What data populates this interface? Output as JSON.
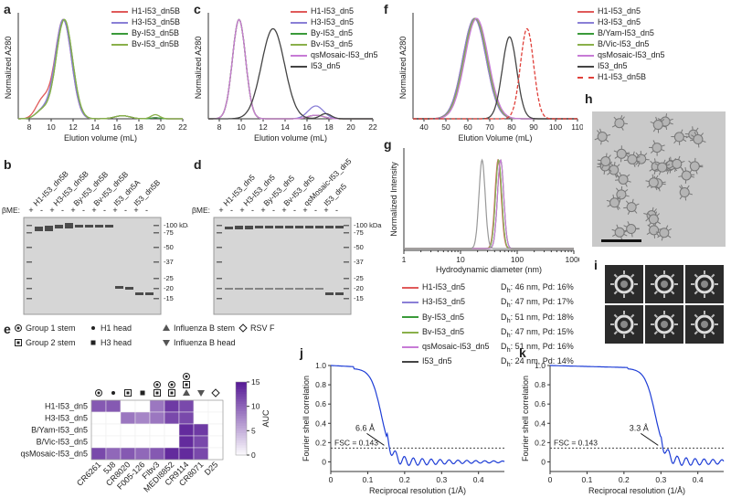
{
  "panels": {
    "a": "a",
    "b": "b",
    "c": "c",
    "d": "d",
    "e": "e",
    "f": "f",
    "g": "g",
    "h": "h",
    "i": "i",
    "j": "j",
    "k": "k"
  },
  "colors": {
    "H1": "#e05a5a",
    "H3": "#8a7fd6",
    "By": "#3a9a3a",
    "Bv": "#8ab04a",
    "qs": "#c77bd6",
    "I53": "#444444",
    "dn5B_dash": "#e0403a",
    "fsc": "#1f3ed6"
  },
  "chart_data": [
    {
      "panel": "a",
      "type": "line",
      "xlabel": "Elution volume (mL)",
      "ylabel": "Normalized A280",
      "xlim": [
        7,
        22
      ],
      "xticks": [
        8,
        10,
        12,
        14,
        16,
        18,
        20,
        22
      ],
      "series": [
        {
          "name": "H1-I53_dn5B",
          "color": "#e05a5a",
          "peak": 11.1
        },
        {
          "name": "H3-I53_dn5B",
          "color": "#8a7fd6",
          "peak": 11.1
        },
        {
          "name": "By-I53_dn5B",
          "color": "#3a9a3a",
          "peak": 11.2
        },
        {
          "name": "Bv-I53_dn5B",
          "color": "#8ab04a",
          "peak": 11.2
        }
      ]
    },
    {
      "panel": "c",
      "type": "line",
      "xlabel": "Elution volume (mL)",
      "ylabel": "Normalized A280",
      "xlim": [
        7,
        22
      ],
      "xticks": [
        8,
        10,
        12,
        14,
        16,
        18,
        20,
        22
      ],
      "series": [
        {
          "name": "H1-I53_dn5",
          "color": "#e05a5a",
          "peak": 9.8
        },
        {
          "name": "H3-I53_dn5",
          "color": "#8a7fd6",
          "peak": 9.8
        },
        {
          "name": "By-I53_dn5",
          "color": "#3a9a3a",
          "peak": 9.8
        },
        {
          "name": "Bv-I53_dn5",
          "color": "#8ab04a",
          "peak": 9.8
        },
        {
          "name": "qsMosaic-I53_dn5",
          "color": "#c77bd6",
          "peak": 9.8
        },
        {
          "name": "I53_dn5",
          "color": "#444444",
          "peak": 12.9
        }
      ]
    },
    {
      "panel": "f",
      "type": "line",
      "xlabel": "Elution Volume (mL)",
      "ylabel": "Normalized A280",
      "xlim": [
        35,
        110
      ],
      "xticks": [
        40,
        50,
        60,
        70,
        80,
        90,
        100,
        110
      ],
      "series": [
        {
          "name": "H1-I53_dn5",
          "color": "#e05a5a",
          "peak": 63
        },
        {
          "name": "H3-I53_dn5",
          "color": "#8a7fd6",
          "peak": 63
        },
        {
          "name": "B/Yam-I53_dn5",
          "color": "#3a9a3a",
          "peak": 63.5
        },
        {
          "name": "B/Vic-I53_dn5",
          "color": "#8ab04a",
          "peak": 63.5
        },
        {
          "name": "qsMosaic-I53_dn5",
          "color": "#c77bd6",
          "peak": 64
        },
        {
          "name": "I53_dn5",
          "color": "#444444",
          "peak": 79
        },
        {
          "name": "H1-I53_dn5B",
          "color": "#e0403a",
          "peak": 87
        }
      ]
    },
    {
      "panel": "g",
      "type": "line",
      "xlabel": "Hydrodynamic diameter (nm)",
      "ylabel": "Normalized Intensity",
      "xscale": "log",
      "xticklabels": [
        "1",
        "10",
        "100",
        "1000"
      ],
      "series": [
        {
          "name": "H1-I53_dn5",
          "color": "#e05a5a",
          "dh": "46 nm",
          "pd": "16%"
        },
        {
          "name": "H3-I53_dn5",
          "color": "#8a7fd6",
          "dh": "47 nm",
          "pd": "17%"
        },
        {
          "name": "By-I53_dn5",
          "color": "#3a9a3a",
          "dh": "51 nm",
          "pd": "18%"
        },
        {
          "name": "Bv-I53_dn5",
          "color": "#8ab04a",
          "dh": "47 nm",
          "pd": "15%"
        },
        {
          "name": "qsMosaic-I53_dn5",
          "color": "#c77bd6",
          "dh": "51 nm",
          "pd": "16%"
        },
        {
          "name": "I53_dn5",
          "color": "#444444",
          "dh": "24 nm",
          "pd": "14%"
        }
      ]
    },
    {
      "panel": "e",
      "type": "heatmap",
      "rows": [
        "H1-I53_dn5",
        "H3-I53_dn5",
        "B/Yam-I53_dn5",
        "B/Vic-I53_dn5",
        "qsMosaic-I53_dn5"
      ],
      "columns": [
        "CR6261",
        "5J8",
        "CR8020",
        "F005-126",
        "FIbv3",
        "MEDI8852",
        "CR9114",
        "CR8071",
        "D25"
      ],
      "values": [
        [
          11,
          11,
          0,
          0,
          9,
          13,
          12,
          0,
          0
        ],
        [
          0,
          0,
          9,
          8,
          9,
          12,
          12,
          0,
          0
        ],
        [
          0,
          0,
          0,
          0,
          0,
          0,
          14,
          13,
          0
        ],
        [
          0,
          0,
          0,
          0,
          0,
          0,
          14,
          12,
          0
        ],
        [
          12,
          10,
          11,
          10,
          11,
          14,
          14,
          12,
          0
        ]
      ],
      "colorbar": {
        "label": "AUC",
        "ticks": [
          "0",
          "5",
          "10",
          "15"
        ],
        "range": [
          0,
          15
        ]
      }
    },
    {
      "panel": "j",
      "type": "line",
      "xlabel": "Reciprocal resolution (1/Å)",
      "ylabel": "Fourier shell correlation",
      "xlim": [
        0,
        0.47
      ],
      "ylim": [
        -0.1,
        1.0
      ],
      "xticklabels": [
        "0",
        "0.1",
        "0.2",
        "0.3",
        "0.4"
      ],
      "yticklabels": [
        "0",
        "0.2",
        "0.4",
        "0.6",
        "0.8",
        "1.0"
      ],
      "threshold": 0.143,
      "resolution_label": "6.6 Å",
      "fsc_label": "FSC = 0.143"
    },
    {
      "panel": "k",
      "type": "line",
      "xlabel": "Reciprocal resolution (1/Å)",
      "ylabel": "Fourier shell correlation",
      "xlim": [
        0,
        0.47
      ],
      "ylim": [
        -0.1,
        1.0
      ],
      "xticklabels": [
        "0",
        "0.1",
        "0.2",
        "0.3",
        "0.4"
      ],
      "yticklabels": [
        "0",
        "0.2",
        "0.4",
        "0.6",
        "0.8",
        "1.0"
      ],
      "threshold": 0.143,
      "resolution_label": "3.3 Å",
      "fsc_label": "FSC = 0.143"
    }
  ],
  "gel_b": {
    "lanes": [
      "H1-I53_dn5B",
      "H3-I53_dn5B",
      "By-I53_dn5B",
      "Bv-I53_dn5B",
      "I53_dn5A",
      "I53_dn5B"
    ],
    "bme": "βME:",
    "signs": [
      "+",
      "-",
      "+",
      "-",
      "+",
      "-",
      "+",
      "-",
      "+",
      "-",
      "+",
      "-"
    ],
    "markers": [
      "100 kDa",
      "75",
      "50",
      "37",
      "25",
      "20",
      "15"
    ]
  },
  "gel_d": {
    "lanes": [
      "H1-I53_dn5",
      "H3-I53_dn5",
      "By-I53_dn5",
      "Bv-I53_dn5",
      "qsMosaic-I53_dn5",
      "I53_dn5"
    ],
    "bme": "βME:",
    "signs": [
      "+",
      "-",
      "+",
      "-",
      "+",
      "-",
      "+",
      "-",
      "+",
      "-",
      "+",
      "-"
    ],
    "markers": [
      "100 kDa",
      "75",
      "50",
      "37",
      "25",
      "20",
      "15"
    ]
  },
  "legend_e": {
    "items": [
      "Group 1 stem",
      "Group 2 stem",
      "H1 head",
      "H3 head",
      "Influenza B stem",
      "Influenza B head",
      "RSV F"
    ]
  },
  "dls_table": {
    "dh_prefix": "D",
    "dh_sub": "h",
    "pd_prefix": ", Pd: "
  }
}
